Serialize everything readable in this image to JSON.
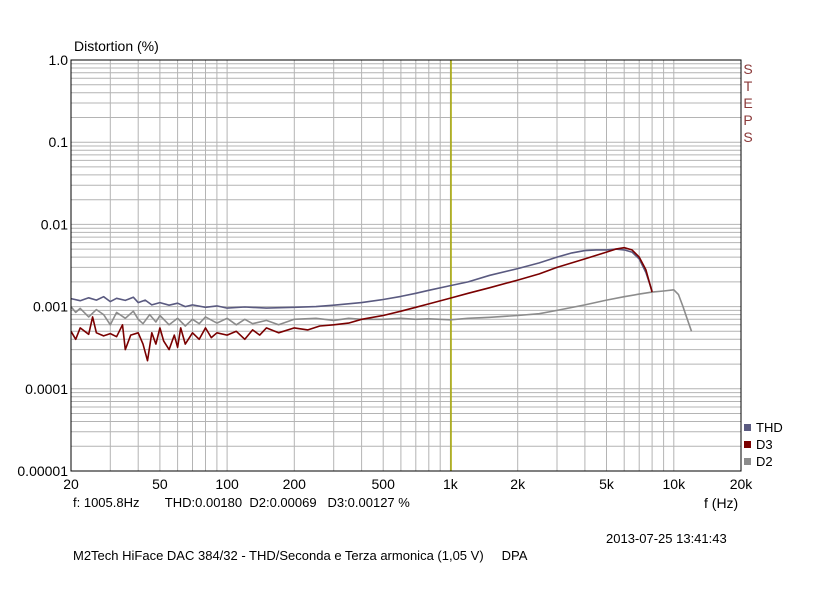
{
  "chart_data": {
    "type": "line",
    "ylabel": "Distortion (%)",
    "xlabel": "f (Hz)",
    "x_scale": "log",
    "y_scale": "log",
    "xlim": [
      20,
      20000
    ],
    "ylim": [
      1e-05,
      1.0
    ],
    "grid": true,
    "legend_position": "bottom-right",
    "x_ticks": [
      {
        "v": 20,
        "label": "20"
      },
      {
        "v": 50,
        "label": "50"
      },
      {
        "v": 100,
        "label": "100"
      },
      {
        "v": 200,
        "label": "200"
      },
      {
        "v": 500,
        "label": "500"
      },
      {
        "v": 1000,
        "label": "1k"
      },
      {
        "v": 2000,
        "label": "2k"
      },
      {
        "v": 5000,
        "label": "5k"
      },
      {
        "v": 10000,
        "label": "10k"
      },
      {
        "v": 20000,
        "label": "20k"
      }
    ],
    "y_ticks": [
      {
        "v": 1.0,
        "label": "1.0"
      },
      {
        "v": 0.1,
        "label": "0.1"
      },
      {
        "v": 0.01,
        "label": "0.01"
      },
      {
        "v": 0.001,
        "label": "0.001"
      },
      {
        "v": 0.0001,
        "label": "0.0001"
      },
      {
        "v": 1e-05,
        "label": "0.00001"
      }
    ],
    "marker_frequency": 1005.8,
    "series": [
      {
        "name": "THD",
        "color": "#5a5a80",
        "points": [
          [
            20,
            0.00125
          ],
          [
            22,
            0.00118
          ],
          [
            24,
            0.00128
          ],
          [
            26,
            0.0012
          ],
          [
            28,
            0.00132
          ],
          [
            30,
            0.00115
          ],
          [
            32,
            0.00126
          ],
          [
            35,
            0.00119
          ],
          [
            38,
            0.0013
          ],
          [
            40,
            0.00112
          ],
          [
            43,
            0.0012
          ],
          [
            46,
            0.00105
          ],
          [
            50,
            0.00112
          ],
          [
            55,
            0.00104
          ],
          [
            60,
            0.0011
          ],
          [
            65,
            0.001
          ],
          [
            70,
            0.00105
          ],
          [
            80,
            0.00098
          ],
          [
            90,
            0.00102
          ],
          [
            100,
            0.00096
          ],
          [
            120,
            0.00099
          ],
          [
            150,
            0.00096
          ],
          [
            200,
            0.00098
          ],
          [
            250,
            0.001
          ],
          [
            300,
            0.00104
          ],
          [
            400,
            0.00112
          ],
          [
            500,
            0.00122
          ],
          [
            600,
            0.00133
          ],
          [
            700,
            0.00145
          ],
          [
            800,
            0.00158
          ],
          [
            1000,
            0.0018
          ],
          [
            1200,
            0.002
          ],
          [
            1500,
            0.0024
          ],
          [
            2000,
            0.0029
          ],
          [
            2500,
            0.0034
          ],
          [
            3000,
            0.004
          ],
          [
            3500,
            0.0045
          ],
          [
            4000,
            0.0048
          ],
          [
            4500,
            0.0049
          ],
          [
            5000,
            0.0049
          ],
          [
            5500,
            0.005
          ],
          [
            6000,
            0.0049
          ],
          [
            6500,
            0.0046
          ],
          [
            7000,
            0.0038
          ],
          [
            7500,
            0.0026
          ],
          [
            8000,
            0.00155
          ]
        ]
      },
      {
        "name": "D3",
        "color": "#7a0000",
        "points": [
          [
            20,
            0.0005
          ],
          [
            21,
            0.0004
          ],
          [
            22,
            0.00055
          ],
          [
            24,
            0.00046
          ],
          [
            25,
            0.00075
          ],
          [
            26,
            0.00048
          ],
          [
            28,
            0.00044
          ],
          [
            30,
            0.00047
          ],
          [
            32,
            0.00043
          ],
          [
            34,
            0.0006
          ],
          [
            35,
            0.0003
          ],
          [
            37,
            0.00045
          ],
          [
            40,
            0.00048
          ],
          [
            42,
            0.00035
          ],
          [
            44,
            0.00022
          ],
          [
            46,
            0.00048
          ],
          [
            48,
            0.00035
          ],
          [
            50,
            0.00055
          ],
          [
            52,
            0.00038
          ],
          [
            55,
            0.0003
          ],
          [
            58,
            0.00045
          ],
          [
            60,
            0.00032
          ],
          [
            62,
            0.00055
          ],
          [
            65,
            0.00035
          ],
          [
            70,
            0.00048
          ],
          [
            75,
            0.0004
          ],
          [
            80,
            0.00055
          ],
          [
            85,
            0.00042
          ],
          [
            90,
            0.00048
          ],
          [
            100,
            0.00045
          ],
          [
            110,
            0.0005
          ],
          [
            120,
            0.0004
          ],
          [
            130,
            0.00052
          ],
          [
            140,
            0.00045
          ],
          [
            150,
            0.00055
          ],
          [
            170,
            0.00048
          ],
          [
            200,
            0.00055
          ],
          [
            230,
            0.00052
          ],
          [
            260,
            0.00058
          ],
          [
            300,
            0.0006
          ],
          [
            350,
            0.00063
          ],
          [
            400,
            0.0007
          ],
          [
            500,
            0.00078
          ],
          [
            600,
            0.00088
          ],
          [
            700,
            0.00098
          ],
          [
            800,
            0.00108
          ],
          [
            1000,
            0.00127
          ],
          [
            1200,
            0.00145
          ],
          [
            1500,
            0.0017
          ],
          [
            2000,
            0.0021
          ],
          [
            2500,
            0.0025
          ],
          [
            3000,
            0.003
          ],
          [
            4000,
            0.0038
          ],
          [
            5000,
            0.0046
          ],
          [
            5500,
            0.005
          ],
          [
            6000,
            0.0052
          ],
          [
            6500,
            0.0049
          ],
          [
            7000,
            0.004
          ],
          [
            7500,
            0.0028
          ],
          [
            8000,
            0.0015
          ]
        ]
      },
      {
        "name": "D2",
        "color": "#8c8c8c",
        "points": [
          [
            20,
            0.001
          ],
          [
            21,
            0.00085
          ],
          [
            22,
            0.00095
          ],
          [
            24,
            0.00075
          ],
          [
            26,
            0.00092
          ],
          [
            28,
            0.0008
          ],
          [
            30,
            0.0006
          ],
          [
            32,
            0.00085
          ],
          [
            35,
            0.00072
          ],
          [
            38,
            0.00088
          ],
          [
            40,
            0.0007
          ],
          [
            42,
            0.00062
          ],
          [
            45,
            0.0008
          ],
          [
            48,
            0.00065
          ],
          [
            50,
            0.00078
          ],
          [
            55,
            0.0006
          ],
          [
            60,
            0.00072
          ],
          [
            65,
            0.00058
          ],
          [
            70,
            0.0007
          ],
          [
            75,
            0.00062
          ],
          [
            80,
            0.00075
          ],
          [
            90,
            0.00063
          ],
          [
            100,
            0.00072
          ],
          [
            110,
            0.0006
          ],
          [
            120,
            0.0007
          ],
          [
            130,
            0.00062
          ],
          [
            150,
            0.00068
          ],
          [
            170,
            0.0006
          ],
          [
            200,
            0.0007
          ],
          [
            250,
            0.00072
          ],
          [
            300,
            0.00068
          ],
          [
            350,
            0.00072
          ],
          [
            400,
            0.0007
          ],
          [
            500,
            0.0007
          ],
          [
            600,
            0.00072
          ],
          [
            700,
            0.0007
          ],
          [
            800,
            0.00071
          ],
          [
            1000,
            0.00069
          ],
          [
            1200,
            0.00072
          ],
          [
            1500,
            0.00074
          ],
          [
            2000,
            0.00078
          ],
          [
            2500,
            0.00082
          ],
          [
            3000,
            0.0009
          ],
          [
            4000,
            0.00105
          ],
          [
            5000,
            0.0012
          ],
          [
            6000,
            0.00132
          ],
          [
            7000,
            0.00142
          ],
          [
            8000,
            0.0015
          ],
          [
            9000,
            0.00155
          ],
          [
            10000,
            0.0016
          ],
          [
            10500,
            0.0014
          ],
          [
            11000,
            0.001
          ],
          [
            11500,
            0.0007
          ],
          [
            12000,
            0.0005
          ]
        ]
      }
    ]
  },
  "readout": {
    "freq": "f: 1005.8Hz",
    "thd": "THD:0.00180",
    "d2": "D2:0.00069",
    "d3": "D3:0.00127",
    "unit": "%"
  },
  "timestamp": "2013-07-25 13:41:43",
  "footer": {
    "caption": "M2Tech HiFace DAC 384/32 - THD/Seconda e Terza armonica (1,05 V)",
    "app": "DPA"
  },
  "side_label": [
    "S",
    "T",
    "E",
    "P",
    "S"
  ],
  "colors": {
    "plot_bg": "#ffffff",
    "grid": "#b4b4b4",
    "frame": "#000000",
    "marker": "#a8a800",
    "steps": "#8b3a3a"
  }
}
